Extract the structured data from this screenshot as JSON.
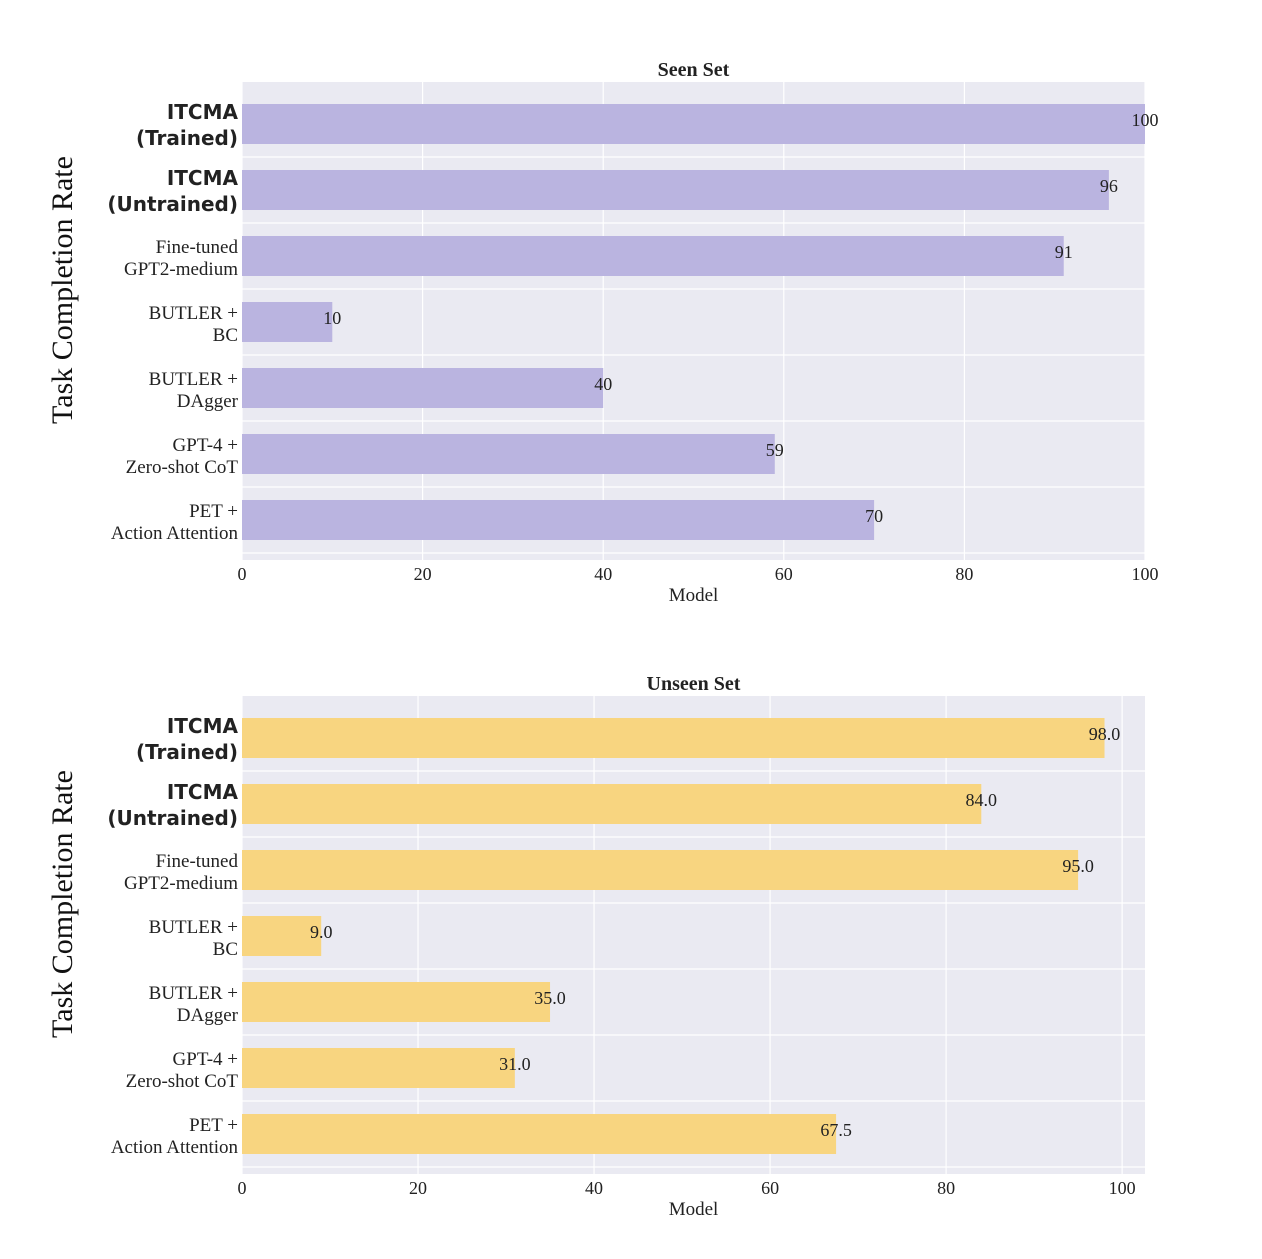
{
  "chart_data": [
    {
      "type": "bar",
      "orientation": "horizontal",
      "title": "Seen Set",
      "ylabel": "Task Completion Rate",
      "xlabel": "Model",
      "xlim": [
        0,
        100
      ],
      "xticks": [
        "0",
        "20",
        "40",
        "60",
        "80",
        "100"
      ],
      "grid": true,
      "color": "#bab4e0",
      "categories": [
        {
          "lines": [
            "ITCMA",
            "(Trained)"
          ],
          "bold": true
        },
        {
          "lines": [
            "ITCMA",
            "(Untrained)"
          ],
          "bold": true
        },
        {
          "lines": [
            "Fine-tuned",
            "GPT2-medium"
          ],
          "bold": false
        },
        {
          "lines": [
            "BUTLER +",
            "BC"
          ],
          "bold": false
        },
        {
          "lines": [
            "BUTLER +",
            "DAgger"
          ],
          "bold": false
        },
        {
          "lines": [
            "GPT-4 +",
            "Zero-shot CoT"
          ],
          "bold": false
        },
        {
          "lines": [
            "PET +",
            "Action Attention"
          ],
          "bold": false
        }
      ],
      "values": [
        100,
        96,
        91,
        10,
        40,
        59,
        70
      ],
      "value_labels": [
        "100",
        "96",
        "91",
        "10",
        "40",
        "59",
        "70"
      ]
    },
    {
      "type": "bar",
      "orientation": "horizontal",
      "title": "Unseen Set",
      "ylabel": "Task Completion Rate",
      "xlabel": "Model",
      "xlim": [
        0,
        102.6
      ],
      "xticks": [
        "0",
        "20",
        "40",
        "60",
        "80",
        "100"
      ],
      "grid": true,
      "color": "#f8d580",
      "categories": [
        {
          "lines": [
            "ITCMA",
            "(Trained)"
          ],
          "bold": true
        },
        {
          "lines": [
            "ITCMA",
            "(Untrained)"
          ],
          "bold": true
        },
        {
          "lines": [
            "Fine-tuned",
            "GPT2-medium"
          ],
          "bold": false
        },
        {
          "lines": [
            "BUTLER +",
            "BC"
          ],
          "bold": false
        },
        {
          "lines": [
            "BUTLER +",
            "DAgger"
          ],
          "bold": false
        },
        {
          "lines": [
            "GPT-4 +",
            "Zero-shot CoT"
          ],
          "bold": false
        },
        {
          "lines": [
            "PET +",
            "Action Attention"
          ],
          "bold": false
        }
      ],
      "values": [
        98.0,
        84.0,
        95.0,
        9.0,
        35.0,
        31.0,
        67.5
      ],
      "value_labels": [
        "98.0",
        "84.0",
        "95.0",
        "9.0",
        "35.0",
        "31.0",
        "67.5"
      ]
    }
  ]
}
